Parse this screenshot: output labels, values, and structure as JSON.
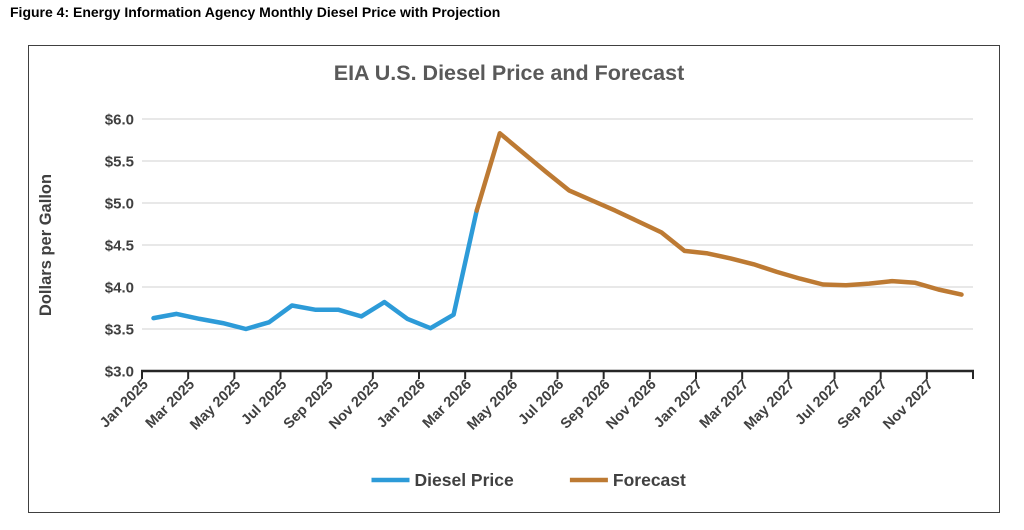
{
  "page": {
    "figure_caption": "Figure 4: Energy Information Agency Monthly Diesel Price with Projection"
  },
  "chart_data": {
    "type": "line",
    "title": "EIA U.S. Diesel Price and Forecast",
    "xlabel": "",
    "ylabel": "Dollars per Gallon",
    "ylim": [
      3.0,
      6.0
    ],
    "ytick_step": 0.5,
    "ytick_labels": [
      "$6.0",
      "$5.5",
      "$5.0",
      "$4.5",
      "$4.0",
      "$3.5",
      "$3.0"
    ],
    "grid": "horizontal-only",
    "legend_position": "bottom-center",
    "x": [
      "Jan 2025",
      "Feb 2025",
      "Mar 2025",
      "Apr 2025",
      "May 2025",
      "Jun 2025",
      "Jul 2025",
      "Aug 2025",
      "Sep 2025",
      "Oct 2025",
      "Nov 2025",
      "Dec 2025",
      "Jan 2026",
      "Feb 2026",
      "Mar 2026",
      "Apr 2026",
      "May 2026",
      "Jun 2026",
      "Jul 2026",
      "Aug 2026",
      "Sep 2026",
      "Oct 2026",
      "Nov 2026",
      "Dec 2026",
      "Jan 2027",
      "Feb 2027",
      "Mar 2027",
      "Apr 2027",
      "May 2027",
      "Jun 2027",
      "Jul 2027",
      "Aug 2027",
      "Sep 2027",
      "Oct 2027",
      "Nov 2027",
      "Dec 2027"
    ],
    "xtick_labels": [
      "Jan 2025",
      "Mar 2025",
      "May 2025",
      "Jul 2025",
      "Sep 2025",
      "Nov 2025",
      "Jan 2026",
      "Mar 2026",
      "May 2026",
      "Jul 2026",
      "Sep 2026",
      "Nov 2026",
      "Jan 2027",
      "Mar 2027",
      "May 2027",
      "Jul 2027",
      "Sep 2027",
      "Nov 2027"
    ],
    "series": [
      {
        "name": "Diesel Price",
        "color": "#2D9BD8",
        "values": [
          3.63,
          3.68,
          3.62,
          3.57,
          3.5,
          3.58,
          3.78,
          3.73,
          3.73,
          3.65,
          3.82,
          3.62,
          3.51,
          3.67,
          4.91,
          null,
          null,
          null,
          null,
          null,
          null,
          null,
          null,
          null,
          null,
          null,
          null,
          null,
          null,
          null,
          null,
          null,
          null,
          null,
          null,
          null
        ]
      },
      {
        "name": "Forecast",
        "color": "#BD7A33",
        "values": [
          null,
          null,
          null,
          null,
          null,
          null,
          null,
          null,
          null,
          null,
          null,
          null,
          null,
          null,
          4.91,
          5.83,
          5.6,
          5.37,
          5.15,
          5.03,
          4.91,
          4.78,
          4.65,
          4.43,
          4.4,
          4.34,
          4.27,
          4.18,
          4.1,
          4.03,
          4.02,
          4.04,
          4.07,
          4.05,
          3.97,
          3.91
        ]
      }
    ],
    "style": {
      "title_color": "#595959",
      "axis_text_color": "#404040",
      "axis_line_color": "#262626",
      "gridline_color": "#D9D9D9",
      "legend_text_color": "#404040"
    }
  }
}
